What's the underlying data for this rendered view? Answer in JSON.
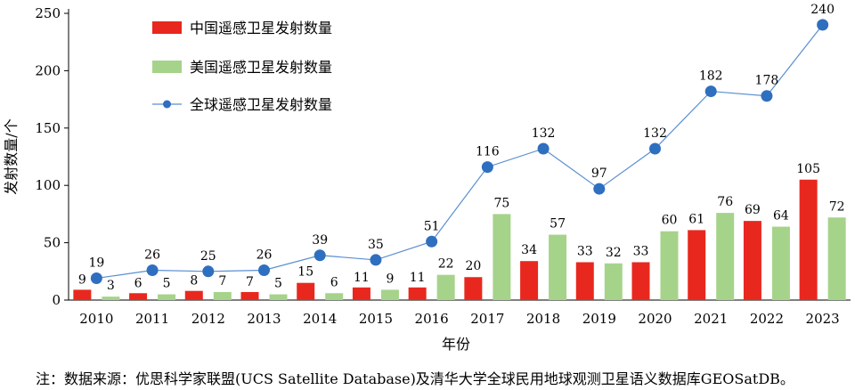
{
  "chart_data": {
    "type": "bar",
    "categories": [
      "2010",
      "2011",
      "2012",
      "2013",
      "2014",
      "2015",
      "2016",
      "2017",
      "2018",
      "2019",
      "2020",
      "2021",
      "2022",
      "2023"
    ],
    "series": [
      {
        "name": "中国遥感卫星发射数量",
        "kind": "bar",
        "color": "#e8281e",
        "values": [
          9,
          6,
          8,
          7,
          15,
          11,
          11,
          20,
          34,
          33,
          33,
          61,
          69,
          105
        ]
      },
      {
        "name": "美国遥感卫星发射数量",
        "kind": "bar",
        "color": "#a6d38a",
        "values": [
          3,
          5,
          7,
          5,
          6,
          9,
          22,
          75,
          57,
          32,
          60,
          76,
          64,
          72
        ]
      },
      {
        "name": "全球遥感卫星发射数量",
        "kind": "line",
        "color": "#2e6fc0",
        "line_color": "#5b8fd1",
        "values": [
          19,
          26,
          25,
          26,
          39,
          35,
          51,
          116,
          132,
          97,
          132,
          182,
          178,
          240
        ]
      }
    ],
    "xlabel": "年份",
    "ylabel": "发射数量/个",
    "ylim": [
      0,
      250
    ],
    "yticks": [
      0,
      50,
      100,
      150,
      200,
      250
    ],
    "grid": false,
    "legend": "top-left"
  },
  "note": {
    "prefix": "注：",
    "text": "数据来源：优思科学家联盟(UCS Satellite Database)及清华大学全球民用地球观测卫星语义数据库GEOSatDB。"
  }
}
